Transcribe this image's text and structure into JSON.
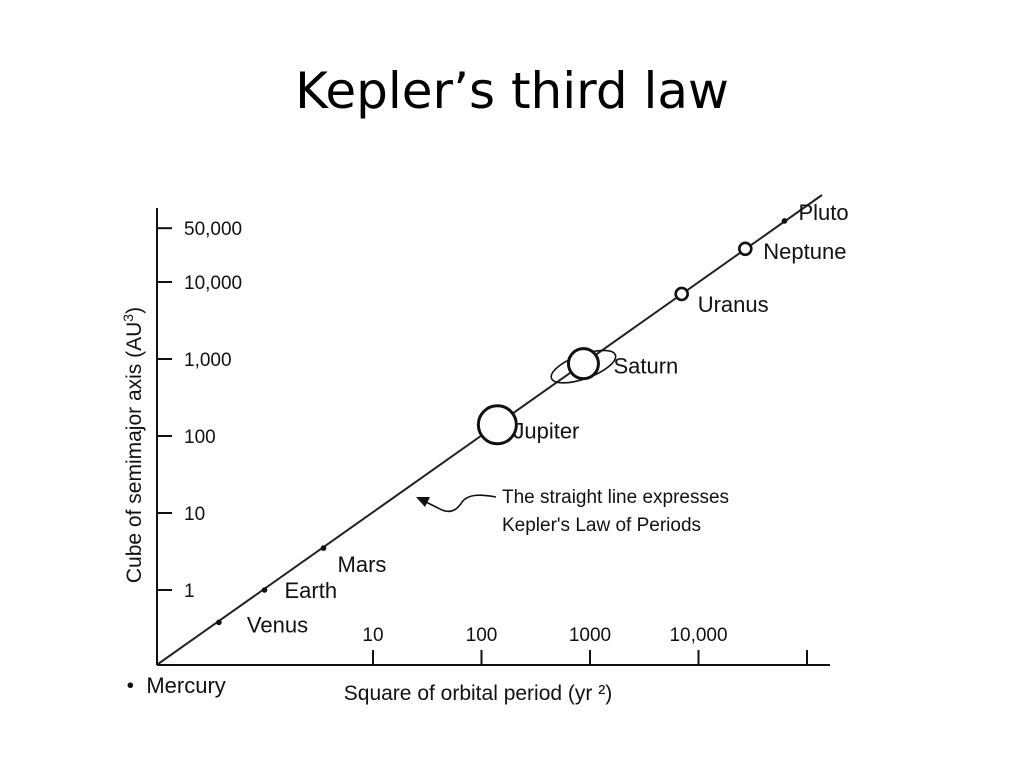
{
  "slide": {
    "title": "Kepler’s third law"
  },
  "chart_data": {
    "type": "scatter",
    "title": "Kepler’s third law",
    "xlabel": "Square of orbital period (yr ²)",
    "ylabel": "Cube of semimajor axis (AU³)",
    "log_scale": true,
    "x_ticks": [
      {
        "value": 10,
        "label": "10"
      },
      {
        "value": 100,
        "label": "100"
      },
      {
        "value": 1000,
        "label": "1000"
      },
      {
        "value": 10000,
        "label": "10,000"
      },
      {
        "value": 100000,
        "label": ""
      }
    ],
    "y_ticks": [
      {
        "value": 1,
        "label": "1"
      },
      {
        "value": 10,
        "label": "10"
      },
      {
        "value": 100,
        "label": "100"
      },
      {
        "value": 1000,
        "label": "1,000"
      },
      {
        "value": 10000,
        "label": "10,000"
      },
      {
        "value": 50000,
        "label": "50,000"
      }
    ],
    "series": [
      {
        "points": [
          {
            "name": "Mercury",
            "x": 0.058,
            "y": 0.058,
            "marker": "dot"
          },
          {
            "name": "Venus",
            "x": 0.38,
            "y": 0.38,
            "marker": "dot"
          },
          {
            "name": "Earth",
            "x": 1,
            "y": 1,
            "marker": "dot"
          },
          {
            "name": "Mars",
            "x": 3.5,
            "y": 3.5,
            "marker": "dot"
          },
          {
            "name": "Jupiter",
            "x": 140,
            "y": 140,
            "marker": "large-circle"
          },
          {
            "name": "Saturn",
            "x": 870,
            "y": 870,
            "marker": "ringed-circle"
          },
          {
            "name": "Uranus",
            "x": 7000,
            "y": 7000,
            "marker": "small-circle"
          },
          {
            "name": "Neptune",
            "x": 27000,
            "y": 27000,
            "marker": "small-circle"
          },
          {
            "name": "Pluto",
            "x": 62000,
            "y": 62000,
            "marker": "dot"
          }
        ]
      }
    ],
    "annotation": {
      "lines": [
        "The straight line expresses",
        "Kepler's Law of Periods"
      ]
    },
    "grid": false
  }
}
